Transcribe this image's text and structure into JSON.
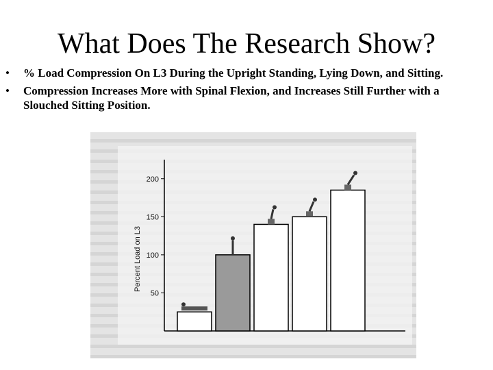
{
  "slide": {
    "title": "What Does The Research Show?",
    "bullets": [
      "% Load Compression On L3 During the Upright Standing, Lying Down, and Sitting.",
      "Compression Increases More with Spinal Flexion, and Increases Still Further with a Slouched Sitting Position."
    ]
  },
  "chart_data": {
    "type": "bar",
    "title": "",
    "xlabel": "",
    "ylabel": "Percent Load on L3",
    "ylim": [
      0,
      225
    ],
    "yticks": [
      50,
      100,
      150,
      200
    ],
    "categories": [
      "",
      "",
      "",
      "",
      ""
    ],
    "values": [
      25,
      100,
      140,
      150,
      185
    ],
    "colors": [
      "#ffffff",
      "#9a9a9a",
      "#ffffff",
      "#ffffff",
      "#ffffff"
    ]
  }
}
